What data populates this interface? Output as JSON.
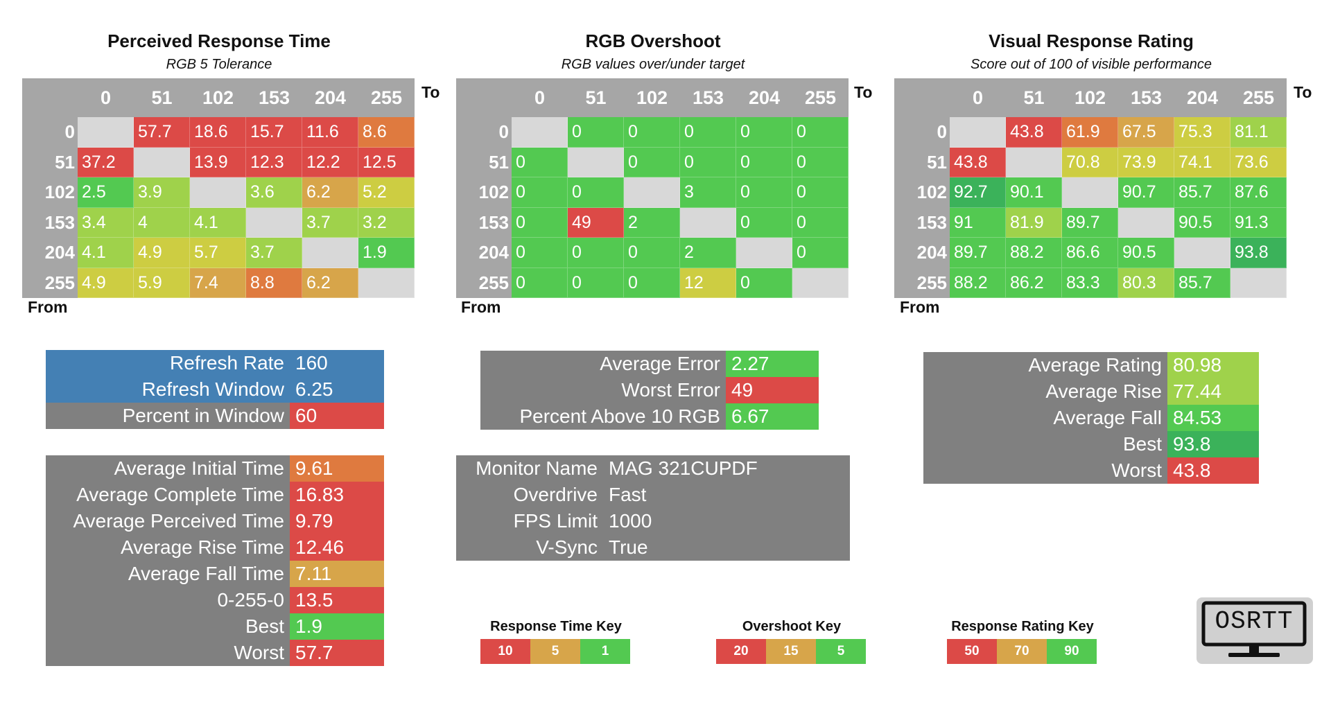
{
  "chart_data": [
    {
      "type": "heatmap",
      "title": "Perceived Response Time",
      "subtitle": "RGB 5 Tolerance",
      "xlabel": "To",
      "ylabel": "From",
      "x": [
        "0",
        "51",
        "102",
        "153",
        "204",
        "255"
      ],
      "y": [
        "0",
        "51",
        "102",
        "153",
        "204",
        "255"
      ],
      "colormap": {
        "high": 10,
        "mid": 5,
        "low": 1,
        "higher_is_better": false
      },
      "values": [
        [
          null,
          "57.7",
          "18.6",
          "15.7",
          "11.6",
          "8.6"
        ],
        [
          "37.2",
          null,
          "13.9",
          "12.3",
          "12.2",
          "12.5"
        ],
        [
          "2.5",
          "3.9",
          null,
          "3.6",
          "6.2",
          "5.2"
        ],
        [
          "3.4",
          "4",
          "4.1",
          null,
          "3.7",
          "3.2"
        ],
        [
          "4.1",
          "4.9",
          "5.7",
          "3.7",
          null,
          "1.9"
        ],
        [
          "4.9",
          "5.9",
          "7.4",
          "8.8",
          "6.2",
          null
        ]
      ]
    },
    {
      "type": "heatmap",
      "title": "RGB Overshoot",
      "subtitle": "RGB values over/under target",
      "xlabel": "To",
      "ylabel": "From",
      "x": [
        "0",
        "51",
        "102",
        "153",
        "204",
        "255"
      ],
      "y": [
        "0",
        "51",
        "102",
        "153",
        "204",
        "255"
      ],
      "colormap": {
        "high": 20,
        "mid": 15,
        "low": 5,
        "higher_is_better": false
      },
      "values": [
        [
          null,
          "0",
          "0",
          "0",
          "0",
          "0"
        ],
        [
          "0",
          null,
          "0",
          "0",
          "0",
          "0"
        ],
        [
          "0",
          "0",
          null,
          "3",
          "0",
          "0"
        ],
        [
          "0",
          "49",
          "2",
          null,
          "0",
          "0"
        ],
        [
          "0",
          "0",
          "0",
          "2",
          null,
          "0"
        ],
        [
          "0",
          "0",
          "0",
          "12",
          "0",
          null
        ]
      ]
    },
    {
      "type": "heatmap",
      "title": "Visual Response Rating",
      "subtitle": "Score out of 100 of visible performance",
      "xlabel": "To",
      "ylabel": "From",
      "x": [
        "0",
        "51",
        "102",
        "153",
        "204",
        "255"
      ],
      "y": [
        "0",
        "51",
        "102",
        "153",
        "204",
        "255"
      ],
      "colormap": {
        "high": 90,
        "mid": 70,
        "low": 50,
        "higher_is_better": true
      },
      "values": [
        [
          null,
          "43.8",
          "61.9",
          "67.5",
          "75.3",
          "81.1"
        ],
        [
          "43.8",
          null,
          "70.8",
          "73.9",
          "74.1",
          "73.6"
        ],
        [
          "92.7",
          "90.1",
          null,
          "90.7",
          "85.7",
          "87.6"
        ],
        [
          "91",
          "81.9",
          "89.7",
          null,
          "90.5",
          "91.3"
        ],
        [
          "89.7",
          "88.2",
          "86.6",
          "90.5",
          null,
          "93.8"
        ],
        [
          "88.2",
          "86.2",
          "83.3",
          "80.3",
          "85.7",
          null
        ]
      ]
    }
  ],
  "refresh": [
    {
      "label": "Refresh Rate",
      "value": "160"
    },
    {
      "label": "Refresh Window",
      "value": "6.25"
    },
    {
      "label": "Percent in Window",
      "value": "60"
    }
  ],
  "response_stats": [
    {
      "label": "Average Initial Time",
      "value": "9.61"
    },
    {
      "label": "Average Complete Time",
      "value": "16.83"
    },
    {
      "label": "Average Perceived Time",
      "value": "9.79"
    },
    {
      "label": "Average Rise Time",
      "value": "12.46"
    },
    {
      "label": "Average Fall Time",
      "value": "7.11"
    },
    {
      "label": "0-255-0",
      "value": "13.5"
    },
    {
      "label": "Best",
      "value": "1.9"
    },
    {
      "label": "Worst",
      "value": "57.7"
    }
  ],
  "overshoot_stats": [
    {
      "label": "Average Error",
      "value": "2.27"
    },
    {
      "label": "Worst Error",
      "value": "49"
    },
    {
      "label": "Percent Above 10 RGB",
      "value": "6.67"
    }
  ],
  "monitor": [
    {
      "label": "Monitor Name",
      "value": "MAG 321CUPDF"
    },
    {
      "label": "Overdrive",
      "value": "Fast"
    },
    {
      "label": "FPS Limit",
      "value": "1000"
    },
    {
      "label": "V-Sync",
      "value": "True"
    }
  ],
  "rating_stats": [
    {
      "label": "Average Rating",
      "value": "80.98"
    },
    {
      "label": "Average Rise",
      "value": "77.44"
    },
    {
      "label": "Average Fall",
      "value": "84.53"
    },
    {
      "label": "Best",
      "value": "93.8"
    },
    {
      "label": "Worst",
      "value": "43.8"
    }
  ],
  "keys": [
    {
      "title": "Response Time Key",
      "values": [
        "10",
        "5",
        "1"
      ]
    },
    {
      "title": "Overshoot Key",
      "values": [
        "20",
        "15",
        "5"
      ]
    },
    {
      "title": "Response Rating Key",
      "values": [
        "50",
        "70",
        "90"
      ]
    }
  ],
  "logo": {
    "text": "OSRTT"
  },
  "colors": {
    "red": "#dc4a47",
    "orange": "#df7a3f",
    "amber": "#d7a54a",
    "yellow": "#cdcd42",
    "lime": "#9fd24b",
    "green": "#53c951",
    "dark_green": "#3bb25a",
    "header_gray": "#a6a6a6",
    "panel_gray": "#808080",
    "blue": "#4480b4",
    "empty": "#d8d8d8"
  }
}
